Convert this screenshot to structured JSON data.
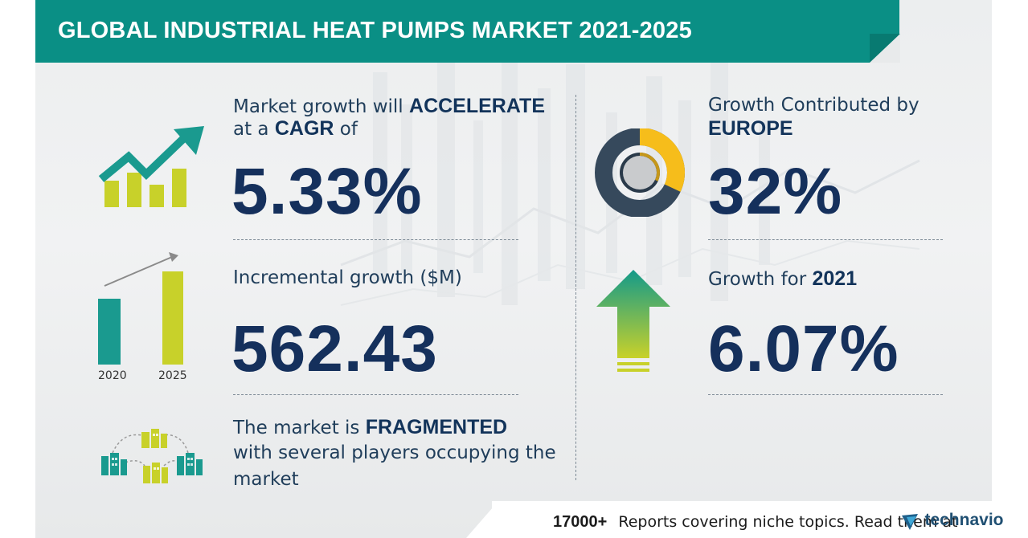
{
  "header": {
    "title": "GLOBAL INDUSTRIAL HEAT PUMPS MARKET 2021-2025"
  },
  "cagr": {
    "line1_prefix": "Market growth will ",
    "line1_bold": "ACCELERATE",
    "line2_prefix": "at a ",
    "line2_bold": "CAGR",
    "line2_suffix": " of",
    "value": "5.33%"
  },
  "incremental": {
    "label": "Incremental growth ($M)",
    "value": "562.43",
    "year_start": "2020",
    "year_end": "2025"
  },
  "market": {
    "line1_prefix": "The market is ",
    "line1_bold": "FRAGMENTED",
    "line2": "with several players occupying the",
    "line3": "market"
  },
  "region": {
    "line1": "Growth Contributed by",
    "line2_bold": "EUROPE",
    "value": "32%",
    "share": 0.32
  },
  "yoy": {
    "label": "Growth for ",
    "year_bold": "2021",
    "value": "6.07%"
  },
  "footer": {
    "count": "17000+",
    "text": "Reports covering niche topics. Read them at",
    "brand": "technavio"
  },
  "colors": {
    "banner": "#0a8f85",
    "teal": "#1a9a8f",
    "yellow_green": "#c8d12a",
    "navy_text": "#15305c",
    "donut_dark": "#36495c",
    "donut_yellow": "#f6bd1b"
  },
  "icons": {
    "cagr": "trend-up-chart-icon",
    "incremental": "bar-growth-icon",
    "market": "buildings-network-icon",
    "region": "donut-chart-icon",
    "yoy": "up-arrow-icon",
    "brand": "technavio-logo-icon"
  }
}
